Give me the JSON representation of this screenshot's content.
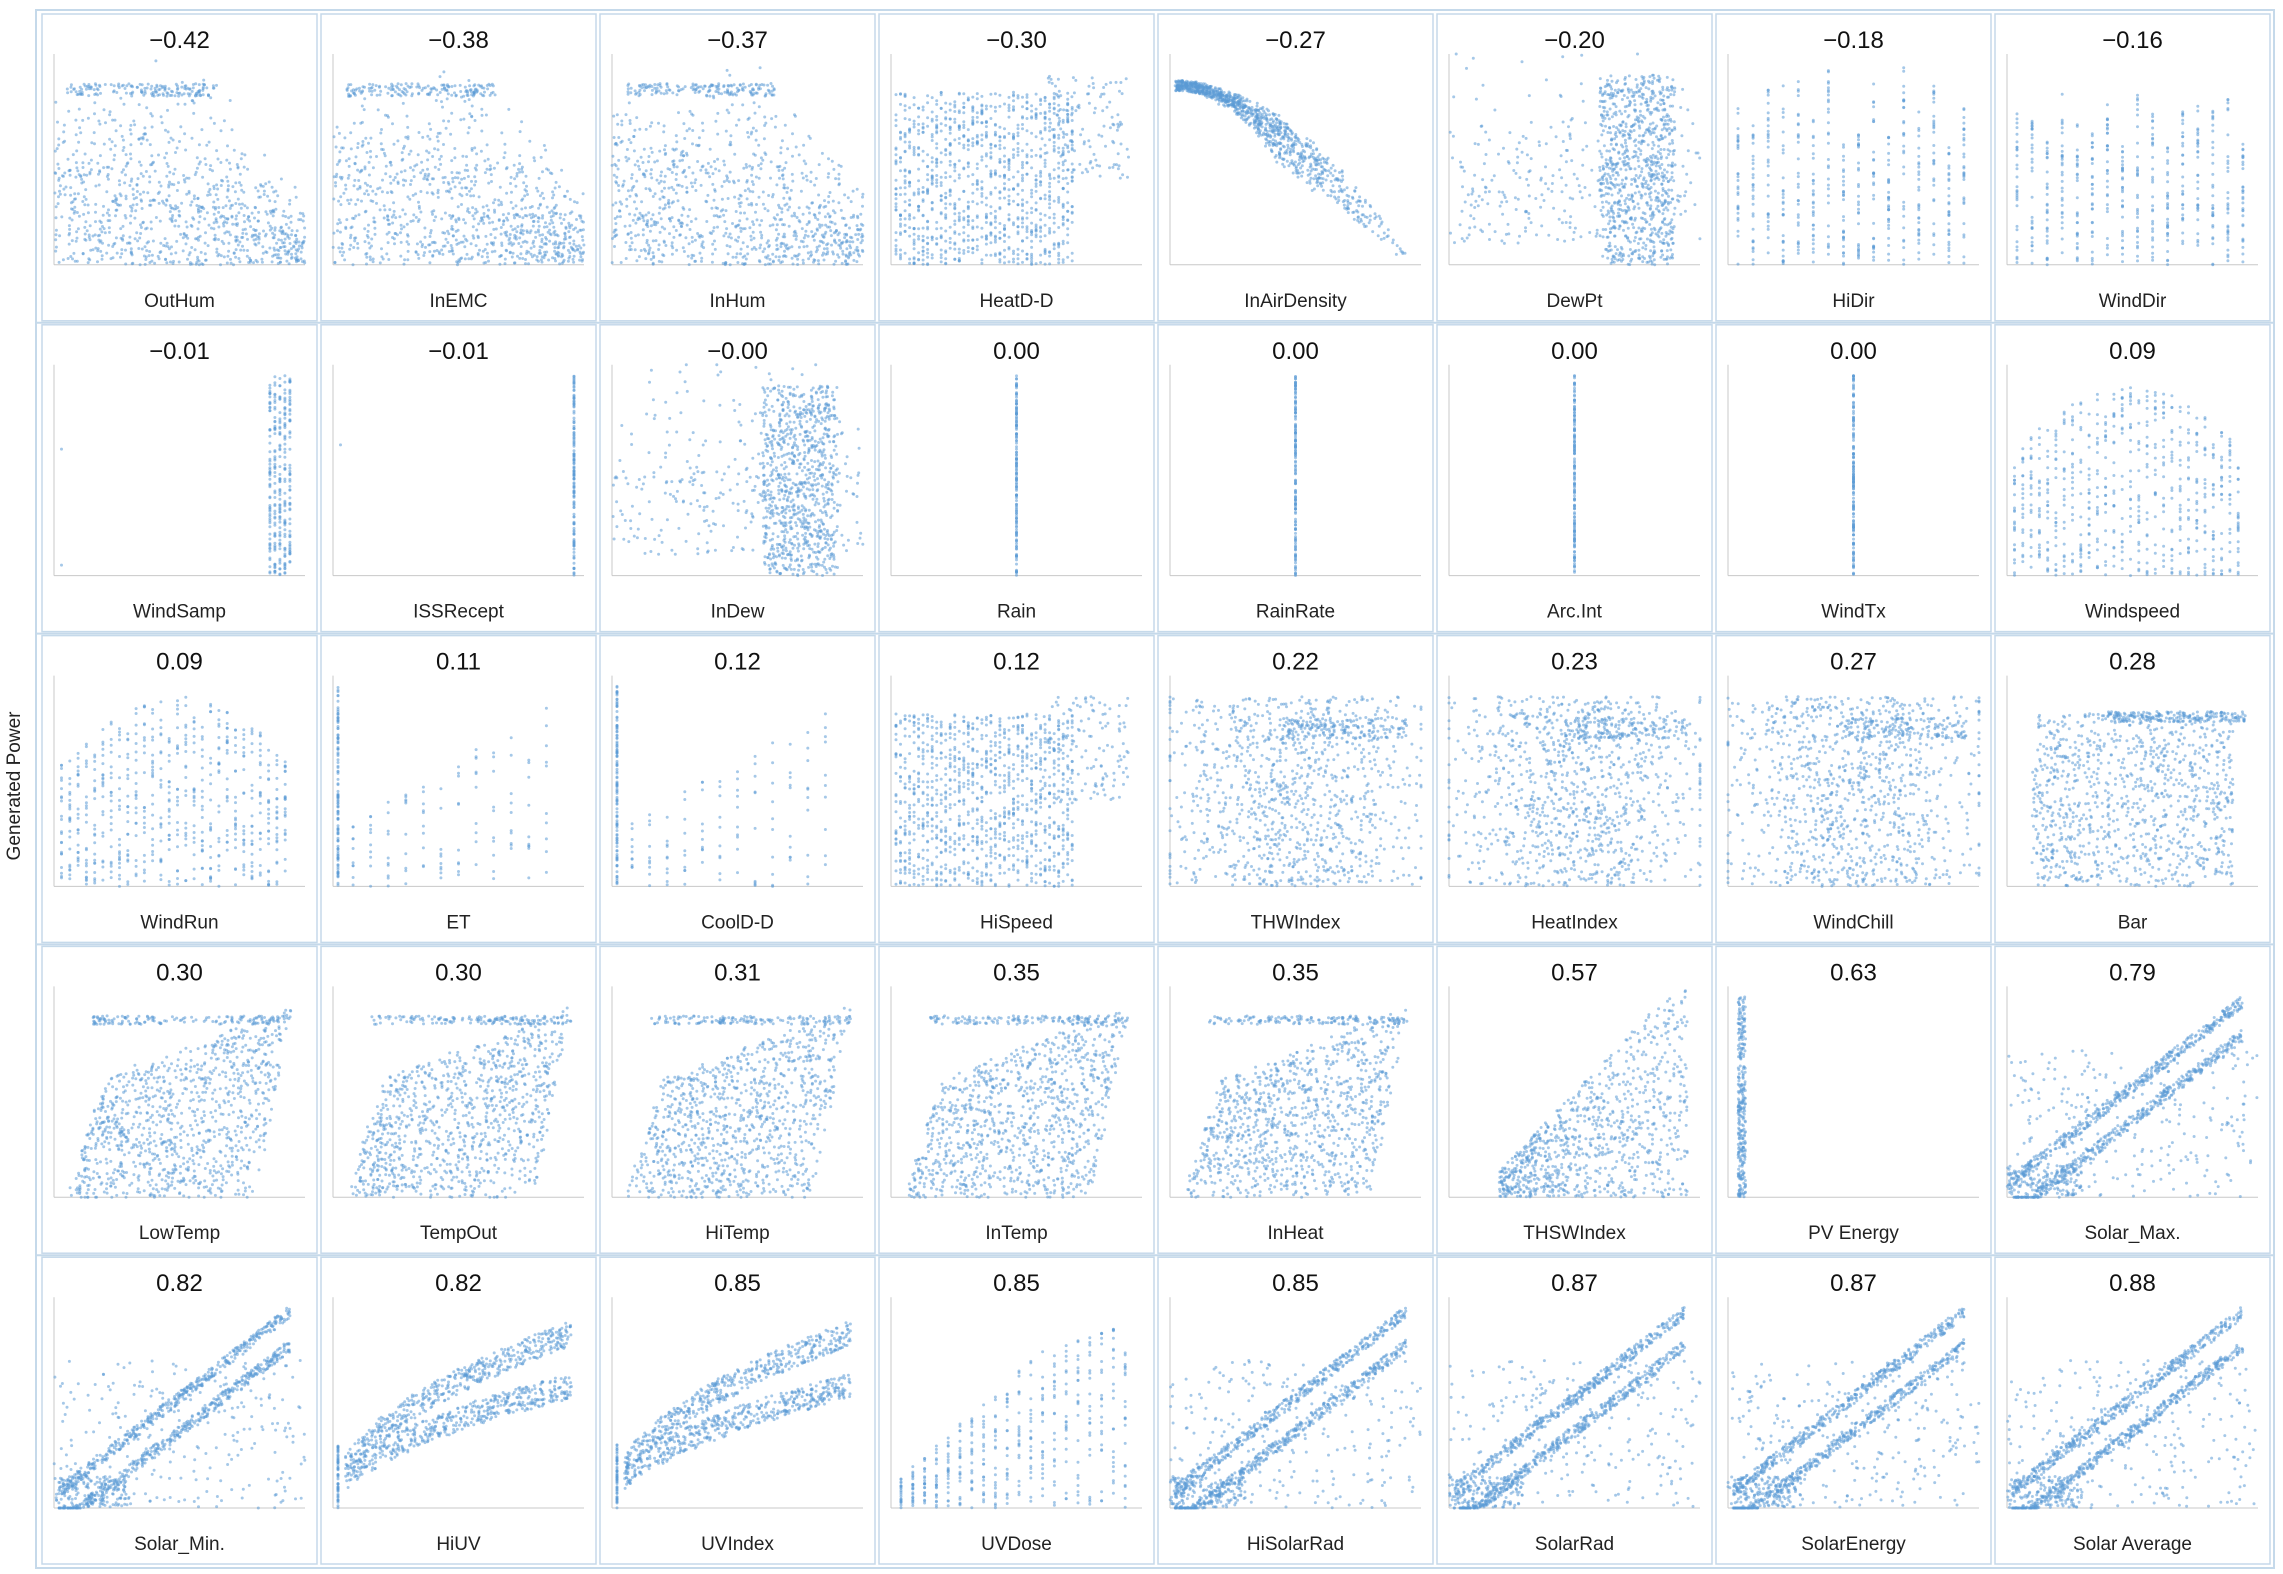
{
  "ylabel": "Generated Power",
  "colors": {
    "marker": "#5b9bd5",
    "frame": "#c5d9ea",
    "axis": "#c8c8c8",
    "text": "#111111"
  },
  "chart_data": {
    "type": "scatter",
    "ylabel": "Generated Power",
    "grid": false,
    "panels": [
      {
        "xlabel": "OutHum",
        "corr": "−0.42",
        "pattern": "negative-curtain"
      },
      {
        "xlabel": "InEMC",
        "corr": "−0.38",
        "pattern": "negative-curtain"
      },
      {
        "xlabel": "InHum",
        "corr": "−0.37",
        "pattern": "negative-curtain"
      },
      {
        "xlabel": "HeatD-D",
        "corr": "−0.30",
        "pattern": "left-grid"
      },
      {
        "xlabel": "InAirDensity",
        "corr": "−0.27",
        "pattern": "fan-left"
      },
      {
        "xlabel": "DewPt",
        "corr": "−0.20",
        "pattern": "right-cluster"
      },
      {
        "xlabel": "HiDir",
        "corr": "−0.18",
        "pattern": "columns"
      },
      {
        "xlabel": "WindDir",
        "corr": "−0.16",
        "pattern": "columns"
      },
      {
        "xlabel": "WindSamp",
        "corr": "−0.01",
        "pattern": "right-columns"
      },
      {
        "xlabel": "ISSRecept",
        "corr": "−0.01",
        "pattern": "right-line"
      },
      {
        "xlabel": "InDew",
        "corr": "−0.00",
        "pattern": "right-cluster"
      },
      {
        "xlabel": "Rain",
        "corr": "0.00",
        "pattern": "center-line"
      },
      {
        "xlabel": "RainRate",
        "corr": "0.00",
        "pattern": "center-line"
      },
      {
        "xlabel": "Arc.Int",
        "corr": "0.00",
        "pattern": "center-line"
      },
      {
        "xlabel": "WindTx",
        "corr": "0.00",
        "pattern": "center-line"
      },
      {
        "xlabel": "Windspeed",
        "corr": "0.09",
        "pattern": "columns-rising"
      },
      {
        "xlabel": "WindRun",
        "corr": "0.09",
        "pattern": "columns-rising"
      },
      {
        "xlabel": "ET",
        "corr": "0.11",
        "pattern": "sparse-steps"
      },
      {
        "xlabel": "CoolD-D",
        "corr": "0.12",
        "pattern": "sparse-steps"
      },
      {
        "xlabel": "HiSpeed",
        "corr": "0.12",
        "pattern": "left-grid"
      },
      {
        "xlabel": "THWIndex",
        "corr": "0.22",
        "pattern": "cloud"
      },
      {
        "xlabel": "HeatIndex",
        "corr": "0.23",
        "pattern": "cloud"
      },
      {
        "xlabel": "WindChill",
        "corr": "0.27",
        "pattern": "cloud"
      },
      {
        "xlabel": "Bar",
        "corr": "0.28",
        "pattern": "loops"
      },
      {
        "xlabel": "LowTemp",
        "corr": "0.30",
        "pattern": "fan-right"
      },
      {
        "xlabel": "TempOut",
        "corr": "0.30",
        "pattern": "fan-right"
      },
      {
        "xlabel": "HiTemp",
        "corr": "0.31",
        "pattern": "fan-right"
      },
      {
        "xlabel": "InTemp",
        "corr": "0.35",
        "pattern": "fan-right"
      },
      {
        "xlabel": "InHeat",
        "corr": "0.35",
        "pattern": "fan-right"
      },
      {
        "xlabel": "THSWIndex",
        "corr": "0.57",
        "pattern": "rising-cloud"
      },
      {
        "xlabel": "PV Energy",
        "corr": "0.63",
        "pattern": "left-line"
      },
      {
        "xlabel": "Solar_Max.",
        "corr": "0.79",
        "pattern": "diagonal-loop"
      },
      {
        "xlabel": "Solar_Min.",
        "corr": "0.82",
        "pattern": "diagonal-loop"
      },
      {
        "xlabel": "HiUV",
        "corr": "0.82",
        "pattern": "concave-bands"
      },
      {
        "xlabel": "UVIndex",
        "corr": "0.85",
        "pattern": "concave-bands"
      },
      {
        "xlabel": "UVDose",
        "corr": "0.85",
        "pattern": "step-columns"
      },
      {
        "xlabel": "HiSolarRad",
        "corr": "0.85",
        "pattern": "diagonal-loop"
      },
      {
        "xlabel": "SolarRad",
        "corr": "0.87",
        "pattern": "diagonal-loop"
      },
      {
        "xlabel": "SolarEnergy",
        "corr": "0.87",
        "pattern": "diagonal-loop"
      },
      {
        "xlabel": "Solar Average",
        "corr": "0.88",
        "pattern": "diagonal-loop"
      }
    ]
  }
}
